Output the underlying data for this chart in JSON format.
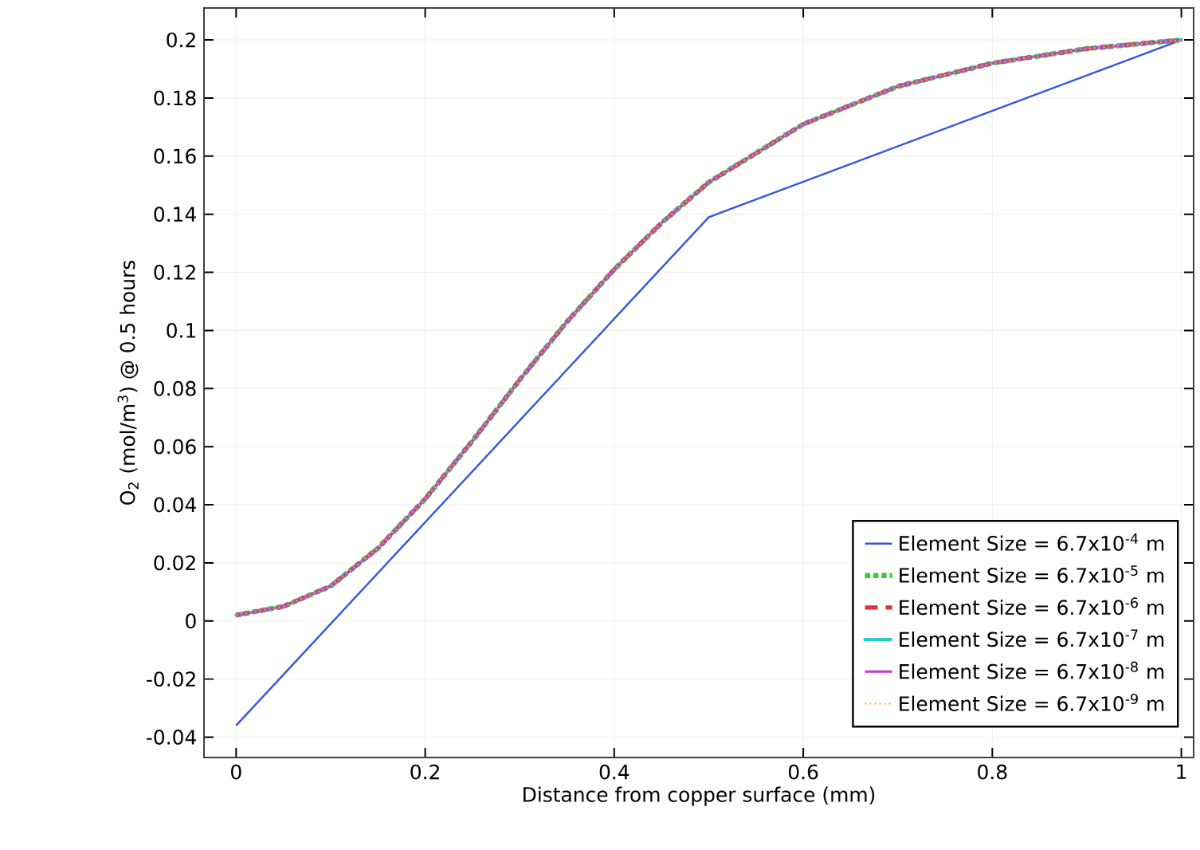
{
  "chart_data": {
    "type": "line",
    "xlabel": "Distance from copper surface (mm)",
    "ylabel": "O$_{2}$ (mol/m$^{3}$) @ 0.5 hours",
    "x": [
      0,
      0.05,
      0.1,
      0.15,
      0.2,
      0.25,
      0.3,
      0.35,
      0.4,
      0.45,
      0.5,
      0.6,
      0.7,
      0.8,
      0.9,
      1
    ],
    "series": [
      {
        "name": "Element Size = 6.7x10$^{-4}$ m",
        "color": "#3355e0",
        "line_style": "solid",
        "x": [
          0,
          0.5,
          1
        ],
        "values": [
          -0.036,
          0.139,
          0.2
        ]
      },
      {
        "name": "Element Size = 6.7x10$^{-5}$ m",
        "color": "#33cc33",
        "line_style": "dotted",
        "values": [
          0.002,
          0.005,
          0.012,
          0.025,
          0.042,
          0.062,
          0.083,
          0.103,
          0.121,
          0.137,
          0.151,
          0.171,
          0.184,
          0.192,
          0.197,
          0.2
        ]
      },
      {
        "name": "Element Size = 6.7x10$^{-6}$ m",
        "color": "#e03333",
        "line_style": "dashed",
        "values": [
          0.002,
          0.005,
          0.012,
          0.025,
          0.042,
          0.062,
          0.083,
          0.103,
          0.121,
          0.137,
          0.151,
          0.171,
          0.184,
          0.192,
          0.197,
          0.2
        ]
      },
      {
        "name": "Element Size = 6.7x10$^{-7}$ m",
        "color": "#22cccc",
        "line_style": "dashdot",
        "values": [
          0.002,
          0.005,
          0.012,
          0.025,
          0.042,
          0.062,
          0.083,
          0.103,
          0.121,
          0.137,
          0.151,
          0.171,
          0.184,
          0.192,
          0.197,
          0.2
        ]
      },
      {
        "name": "Element Size = 6.7x10$^{-8}$ m",
        "color": "#cc33cc",
        "line_style": "solid",
        "values": [
          0.002,
          0.005,
          0.012,
          0.025,
          0.042,
          0.062,
          0.083,
          0.103,
          0.121,
          0.137,
          0.151,
          0.171,
          0.184,
          0.192,
          0.197,
          0.2
        ]
      },
      {
        "name": "Element Size = 6.7x10$^{-9}$ m",
        "color": "#ffaa00",
        "line_style": "dotted",
        "values": [
          0.002,
          0.005,
          0.012,
          0.025,
          0.042,
          0.062,
          0.083,
          0.103,
          0.121,
          0.137,
          0.151,
          0.171,
          0.184,
          0.192,
          0.197,
          0.2
        ]
      }
    ],
    "xlim": [
      -0.034,
      1.013
    ],
    "ylim": [
      -0.047,
      0.211
    ],
    "xticks": [
      0,
      0.2,
      0.4,
      0.6,
      0.8,
      1
    ],
    "yticks": [
      -0.04,
      -0.02,
      0,
      0.02,
      0.04,
      0.06,
      0.08,
      0.1,
      0.12,
      0.14,
      0.16,
      0.18,
      0.2
    ],
    "grid": true,
    "legend": "bottom right"
  }
}
